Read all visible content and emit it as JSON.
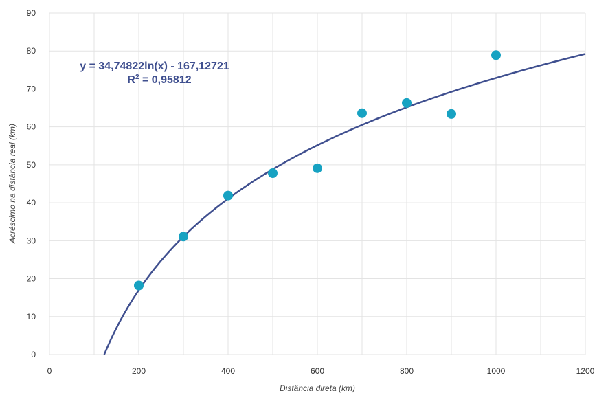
{
  "chart_data": {
    "type": "scatter",
    "xlabel": "Distância direta (km)",
    "ylabel": "Acréscimo na distância real (km)",
    "xlim": [
      0,
      1200
    ],
    "ylim": [
      0,
      90
    ],
    "x_ticks": [
      0,
      200,
      400,
      600,
      800,
      1000,
      1200
    ],
    "y_ticks": [
      0,
      10,
      20,
      30,
      40,
      50,
      60,
      70,
      80,
      90
    ],
    "x_tick_labels": [
      "0",
      "200",
      "400",
      "600",
      "800",
      "1000",
      "1200"
    ],
    "y_tick_labels": [
      "0",
      "10",
      "20",
      "30",
      "40",
      "50",
      "60",
      "70",
      "80",
      "90"
    ],
    "grid": true,
    "series": [
      {
        "x": [
          200,
          300,
          400,
          500,
          600,
          700,
          800,
          900,
          1000
        ],
        "y": [
          18.2,
          31.1,
          41.9,
          47.8,
          49.1,
          63.6,
          66.3,
          63.4,
          78.9
        ],
        "color": "#17a2c2"
      }
    ],
    "trendline": {
      "type": "logarithmic",
      "a": 34.74822,
      "b": -167.12721,
      "x_range": [
        122.6,
        1200
      ],
      "color": "#3f4f8f",
      "equation": "y = 34,74822ln(x) - 167,12721",
      "r2_prefix": "R",
      "r2_exponent": "2",
      "r2_value": " = 0,95812"
    }
  }
}
